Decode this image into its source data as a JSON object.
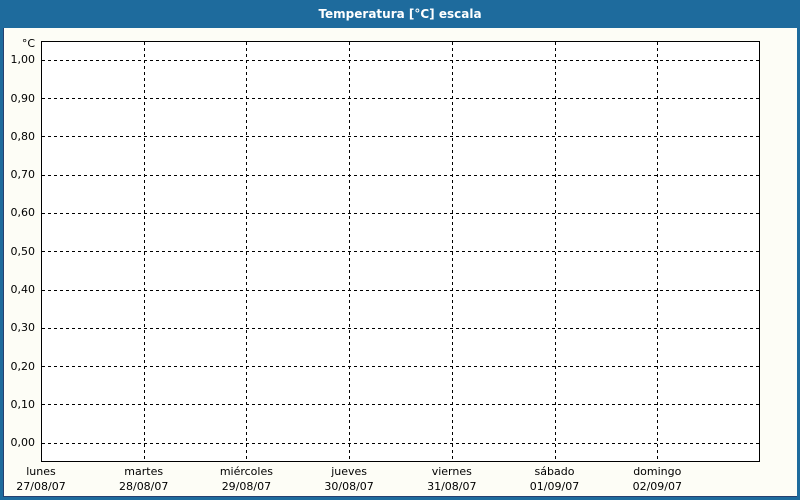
{
  "window": {
    "title": "Temperatura [°C] escala"
  },
  "chart_data": {
    "type": "line",
    "title": "Temperatura [°C] escala",
    "ylabel": "°C",
    "xlabel": "",
    "ylim": [
      0.0,
      1.0
    ],
    "y_step": 0.1,
    "y_ticks": [
      "1,00",
      "0,90",
      "0,80",
      "0,70",
      "0,60",
      "0,50",
      "0,40",
      "0,30",
      "0,20",
      "0,10",
      "0,00"
    ],
    "categories": [
      "lunes",
      "martes",
      "miércoles",
      "jueves",
      "viernes",
      "sábado",
      "domingo"
    ],
    "dates": [
      "27/08/07",
      "28/08/07",
      "29/08/07",
      "30/08/07",
      "31/08/07",
      "01/09/07",
      "02/09/07"
    ],
    "series": [],
    "grid": "dashed",
    "legend": "none"
  },
  "colors": {
    "titlebar_bg": "#1e6b9d",
    "titlebar_text": "#ffffff",
    "frame": "#1e6b9d",
    "frame_inner": "#26406f",
    "content_bg": "#fdfdf6",
    "plot_bg": "#ffffff",
    "grid": "#000000",
    "axis_text": "#000000"
  }
}
